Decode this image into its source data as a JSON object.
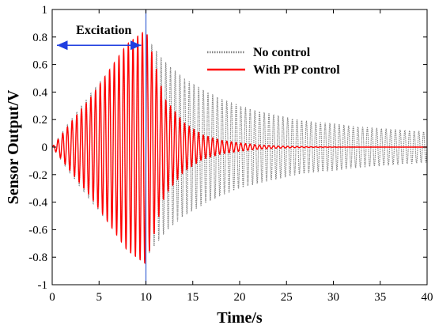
{
  "chart_data": {
    "type": "line",
    "title": "",
    "xlabel": "Time/s",
    "ylabel": "Sensor Output/V",
    "xlim": [
      0,
      40
    ],
    "ylim": [
      -1,
      1
    ],
    "xticks": [
      "0",
      "5",
      "10",
      "15",
      "20",
      "25",
      "30",
      "35",
      "40"
    ],
    "yticks": [
      "-1",
      "-0.8",
      "-0.6",
      "-0.4",
      "-0.2",
      "0",
      "0.2",
      "0.4",
      "0.6",
      "0.8",
      "1"
    ],
    "grid": false,
    "legend_position": "top-right",
    "series": [
      {
        "name": "No control",
        "color": "#808080",
        "style": "dotted",
        "x": [
          0,
          2,
          4,
          6,
          8,
          10,
          12,
          14,
          16,
          18,
          20,
          22,
          24,
          26,
          28,
          30,
          32,
          34,
          36,
          38,
          40
        ],
        "envelope": [
          0.0,
          0.2,
          0.38,
          0.55,
          0.7,
          0.8,
          0.62,
          0.5,
          0.42,
          0.35,
          0.3,
          0.26,
          0.23,
          0.2,
          0.18,
          0.17,
          0.15,
          0.14,
          0.13,
          0.12,
          0.11
        ]
      },
      {
        "name": "With PP control",
        "color": "#ff0000",
        "style": "solid",
        "x": [
          0,
          2,
          4,
          6,
          8,
          10,
          12,
          14,
          16,
          18,
          20,
          22,
          24,
          26,
          28,
          30,
          32,
          34,
          36,
          38,
          40
        ],
        "envelope": [
          0.0,
          0.18,
          0.35,
          0.55,
          0.75,
          0.85,
          0.35,
          0.18,
          0.09,
          0.05,
          0.03,
          0.015,
          0.008,
          0.004,
          0.002,
          0.001,
          0.0,
          0.0,
          0.0,
          0.0,
          0.0
        ]
      }
    ],
    "vline": {
      "x": 10,
      "color": "#4a6fd8"
    },
    "annotations": [
      {
        "text": "Excitation",
        "arrow_from_x": 0,
        "arrow_to_x": 10,
        "arrow_y": 0.74,
        "color": "#1f3ee0"
      }
    ]
  }
}
